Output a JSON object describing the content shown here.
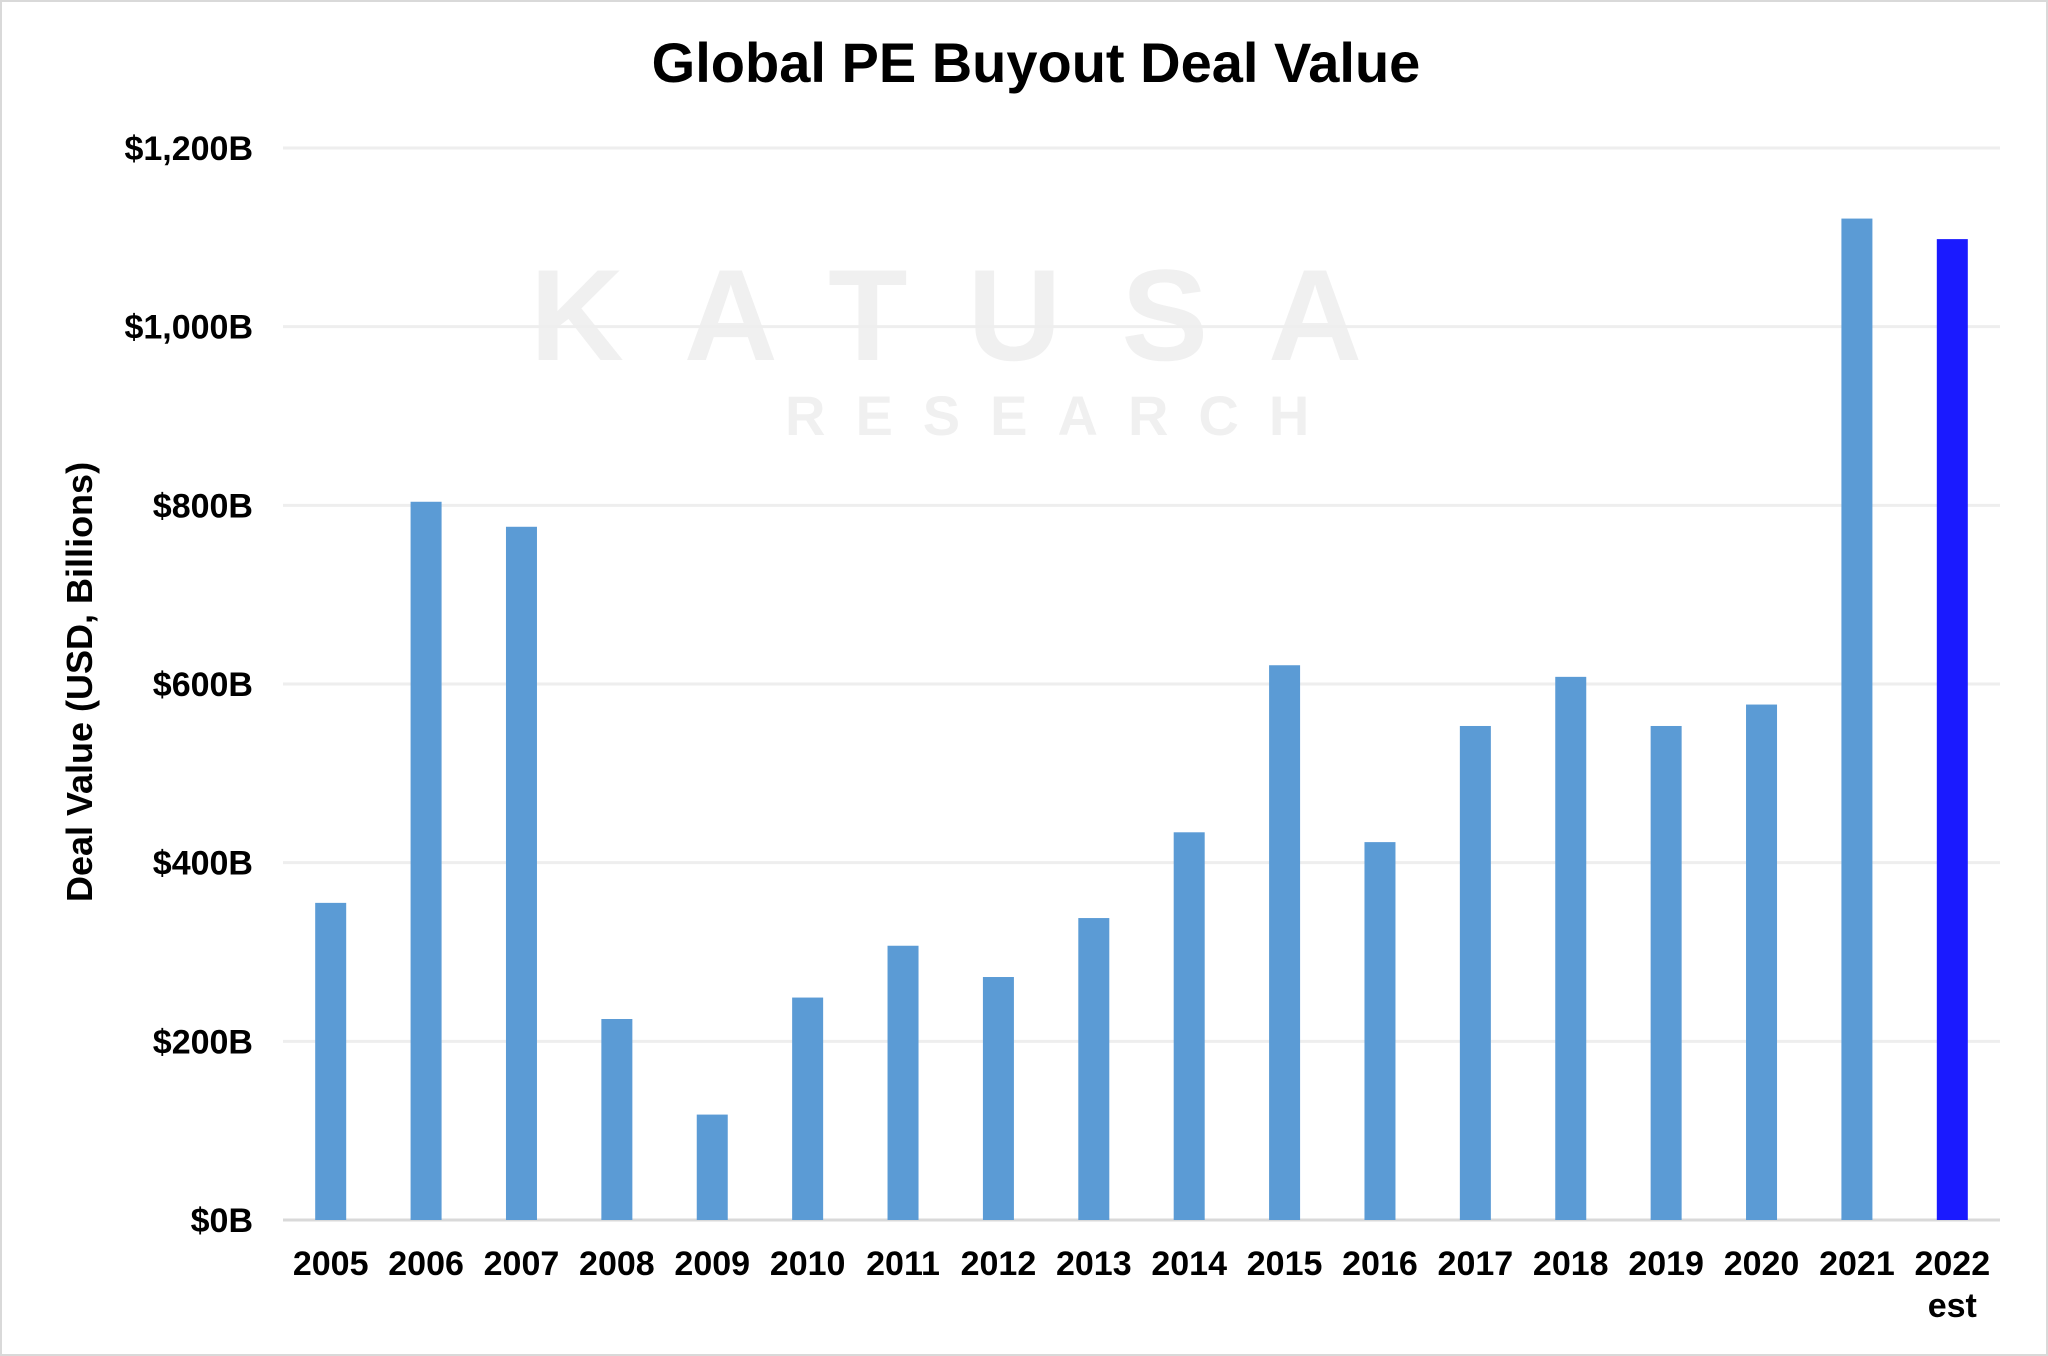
{
  "chart_data": {
    "type": "bar",
    "title": "Global PE Buyout Deal Value",
    "xlabel": "",
    "ylabel": "Deal Value (USD, Billions)",
    "ylim": [
      0,
      1200
    ],
    "yticks": [
      0,
      200,
      400,
      600,
      800,
      1000,
      1200
    ],
    "ytick_labels": [
      "$0B",
      "$200B",
      "$400B",
      "$600B",
      "$800B",
      "$1,000B",
      "$1,200B"
    ],
    "grid": true,
    "categories": [
      "2005",
      "2006",
      "2007",
      "2008",
      "2009",
      "2010",
      "2011",
      "2012",
      "2013",
      "2014",
      "2015",
      "2016",
      "2017",
      "2018",
      "2019",
      "2020",
      "2021",
      "2022\nest"
    ],
    "values": [
      355,
      804,
      776,
      225,
      118,
      249,
      307,
      272,
      338,
      434,
      621,
      423,
      553,
      608,
      553,
      577,
      1121,
      1098
    ],
    "colors": {
      "default": "#5B9BD5",
      "highlight": "#1A1AFF",
      "gridline": "#eeeeee",
      "axis": "#d9d9d9"
    },
    "highlight_index": 17
  },
  "watermark": {
    "brand": "KATUSA",
    "sub": "RESEARCH"
  }
}
